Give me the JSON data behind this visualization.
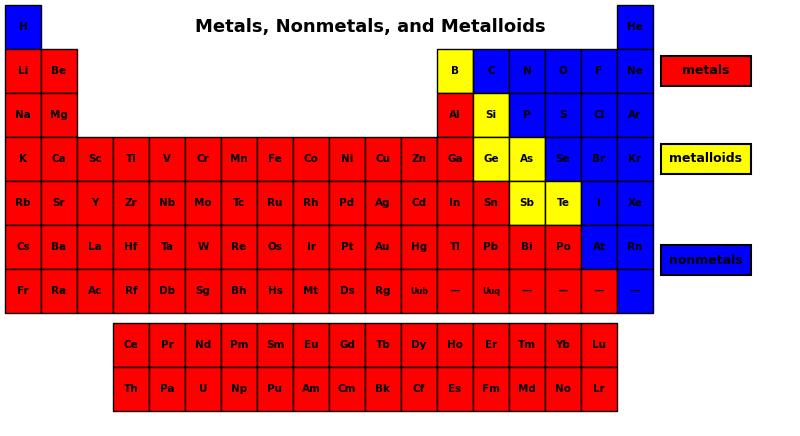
{
  "title": "Metals, Nonmetals, and Metalloids",
  "bg_color": "#ffffff",
  "metal_color": "#ff0000",
  "metalloid_color": "#ffff00",
  "nonmetal_color": "#0000ff",
  "text_color": "#000000",
  "legend": [
    {
      "label": "metals",
      "color": "#ff0000"
    },
    {
      "label": "metalloids",
      "color": "#ffff00"
    },
    {
      "label": "nonmetals",
      "color": "#0000ff"
    }
  ],
  "elements": [
    {
      "symbol": "H",
      "row": 0,
      "col": 0,
      "type": "nonmetal"
    },
    {
      "symbol": "He",
      "row": 0,
      "col": 17,
      "type": "nonmetal"
    },
    {
      "symbol": "Li",
      "row": 1,
      "col": 0,
      "type": "metal"
    },
    {
      "symbol": "Be",
      "row": 1,
      "col": 1,
      "type": "metal"
    },
    {
      "symbol": "B",
      "row": 1,
      "col": 12,
      "type": "metalloid"
    },
    {
      "symbol": "C",
      "row": 1,
      "col": 13,
      "type": "nonmetal"
    },
    {
      "symbol": "N",
      "row": 1,
      "col": 14,
      "type": "nonmetal"
    },
    {
      "symbol": "O",
      "row": 1,
      "col": 15,
      "type": "nonmetal"
    },
    {
      "symbol": "F",
      "row": 1,
      "col": 16,
      "type": "nonmetal"
    },
    {
      "symbol": "Ne",
      "row": 1,
      "col": 17,
      "type": "nonmetal"
    },
    {
      "symbol": "Na",
      "row": 2,
      "col": 0,
      "type": "metal"
    },
    {
      "symbol": "Mg",
      "row": 2,
      "col": 1,
      "type": "metal"
    },
    {
      "symbol": "Al",
      "row": 2,
      "col": 12,
      "type": "metal"
    },
    {
      "symbol": "Si",
      "row": 2,
      "col": 13,
      "type": "metalloid"
    },
    {
      "symbol": "P",
      "row": 2,
      "col": 14,
      "type": "nonmetal"
    },
    {
      "symbol": "S",
      "row": 2,
      "col": 15,
      "type": "nonmetal"
    },
    {
      "symbol": "Cl",
      "row": 2,
      "col": 16,
      "type": "nonmetal"
    },
    {
      "symbol": "Ar",
      "row": 2,
      "col": 17,
      "type": "nonmetal"
    },
    {
      "symbol": "K",
      "row": 3,
      "col": 0,
      "type": "metal"
    },
    {
      "symbol": "Ca",
      "row": 3,
      "col": 1,
      "type": "metal"
    },
    {
      "symbol": "Sc",
      "row": 3,
      "col": 2,
      "type": "metal"
    },
    {
      "symbol": "Ti",
      "row": 3,
      "col": 3,
      "type": "metal"
    },
    {
      "symbol": "V",
      "row": 3,
      "col": 4,
      "type": "metal"
    },
    {
      "symbol": "Cr",
      "row": 3,
      "col": 5,
      "type": "metal"
    },
    {
      "symbol": "Mn",
      "row": 3,
      "col": 6,
      "type": "metal"
    },
    {
      "symbol": "Fe",
      "row": 3,
      "col": 7,
      "type": "metal"
    },
    {
      "symbol": "Co",
      "row": 3,
      "col": 8,
      "type": "metal"
    },
    {
      "symbol": "Ni",
      "row": 3,
      "col": 9,
      "type": "metal"
    },
    {
      "symbol": "Cu",
      "row": 3,
      "col": 10,
      "type": "metal"
    },
    {
      "symbol": "Zn",
      "row": 3,
      "col": 11,
      "type": "metal"
    },
    {
      "symbol": "Ga",
      "row": 3,
      "col": 12,
      "type": "metal"
    },
    {
      "symbol": "Ge",
      "row": 3,
      "col": 13,
      "type": "metalloid"
    },
    {
      "symbol": "As",
      "row": 3,
      "col": 14,
      "type": "metalloid"
    },
    {
      "symbol": "Se",
      "row": 3,
      "col": 15,
      "type": "nonmetal"
    },
    {
      "symbol": "Br",
      "row": 3,
      "col": 16,
      "type": "nonmetal"
    },
    {
      "symbol": "Kr",
      "row": 3,
      "col": 17,
      "type": "nonmetal"
    },
    {
      "symbol": "Rb",
      "row": 4,
      "col": 0,
      "type": "metal"
    },
    {
      "symbol": "Sr",
      "row": 4,
      "col": 1,
      "type": "metal"
    },
    {
      "symbol": "Y",
      "row": 4,
      "col": 2,
      "type": "metal"
    },
    {
      "symbol": "Zr",
      "row": 4,
      "col": 3,
      "type": "metal"
    },
    {
      "symbol": "Nb",
      "row": 4,
      "col": 4,
      "type": "metal"
    },
    {
      "symbol": "Mo",
      "row": 4,
      "col": 5,
      "type": "metal"
    },
    {
      "symbol": "Tc",
      "row": 4,
      "col": 6,
      "type": "metal"
    },
    {
      "symbol": "Ru",
      "row": 4,
      "col": 7,
      "type": "metal"
    },
    {
      "symbol": "Rh",
      "row": 4,
      "col": 8,
      "type": "metal"
    },
    {
      "symbol": "Pd",
      "row": 4,
      "col": 9,
      "type": "metal"
    },
    {
      "symbol": "Ag",
      "row": 4,
      "col": 10,
      "type": "metal"
    },
    {
      "symbol": "Cd",
      "row": 4,
      "col": 11,
      "type": "metal"
    },
    {
      "symbol": "In",
      "row": 4,
      "col": 12,
      "type": "metal"
    },
    {
      "symbol": "Sn",
      "row": 4,
      "col": 13,
      "type": "metal"
    },
    {
      "symbol": "Sb",
      "row": 4,
      "col": 14,
      "type": "metalloid"
    },
    {
      "symbol": "Te",
      "row": 4,
      "col": 15,
      "type": "metalloid"
    },
    {
      "symbol": "I",
      "row": 4,
      "col": 16,
      "type": "nonmetal"
    },
    {
      "symbol": "Xe",
      "row": 4,
      "col": 17,
      "type": "nonmetal"
    },
    {
      "symbol": "Cs",
      "row": 5,
      "col": 0,
      "type": "metal"
    },
    {
      "symbol": "Ba",
      "row": 5,
      "col": 1,
      "type": "metal"
    },
    {
      "symbol": "La",
      "row": 5,
      "col": 2,
      "type": "metal"
    },
    {
      "symbol": "Hf",
      "row": 5,
      "col": 3,
      "type": "metal"
    },
    {
      "symbol": "Ta",
      "row": 5,
      "col": 4,
      "type": "metal"
    },
    {
      "symbol": "W",
      "row": 5,
      "col": 5,
      "type": "metal"
    },
    {
      "symbol": "Re",
      "row": 5,
      "col": 6,
      "type": "metal"
    },
    {
      "symbol": "Os",
      "row": 5,
      "col": 7,
      "type": "metal"
    },
    {
      "symbol": "Ir",
      "row": 5,
      "col": 8,
      "type": "metal"
    },
    {
      "symbol": "Pt",
      "row": 5,
      "col": 9,
      "type": "metal"
    },
    {
      "symbol": "Au",
      "row": 5,
      "col": 10,
      "type": "metal"
    },
    {
      "symbol": "Hg",
      "row": 5,
      "col": 11,
      "type": "metal"
    },
    {
      "symbol": "Tl",
      "row": 5,
      "col": 12,
      "type": "metal"
    },
    {
      "symbol": "Pb",
      "row": 5,
      "col": 13,
      "type": "metal"
    },
    {
      "symbol": "Bi",
      "row": 5,
      "col": 14,
      "type": "metal"
    },
    {
      "symbol": "Po",
      "row": 5,
      "col": 15,
      "type": "metal"
    },
    {
      "symbol": "At",
      "row": 5,
      "col": 16,
      "type": "nonmetal"
    },
    {
      "symbol": "Rn",
      "row": 5,
      "col": 17,
      "type": "nonmetal"
    },
    {
      "symbol": "Fr",
      "row": 6,
      "col": 0,
      "type": "metal"
    },
    {
      "symbol": "Ra",
      "row": 6,
      "col": 1,
      "type": "metal"
    },
    {
      "symbol": "Ac",
      "row": 6,
      "col": 2,
      "type": "metal"
    },
    {
      "symbol": "Rf",
      "row": 6,
      "col": 3,
      "type": "metal"
    },
    {
      "symbol": "Db",
      "row": 6,
      "col": 4,
      "type": "metal"
    },
    {
      "symbol": "Sg",
      "row": 6,
      "col": 5,
      "type": "metal"
    },
    {
      "symbol": "Bh",
      "row": 6,
      "col": 6,
      "type": "metal"
    },
    {
      "symbol": "Hs",
      "row": 6,
      "col": 7,
      "type": "metal"
    },
    {
      "symbol": "Mt",
      "row": 6,
      "col": 8,
      "type": "metal"
    },
    {
      "symbol": "Ds",
      "row": 6,
      "col": 9,
      "type": "metal"
    },
    {
      "symbol": "Rg",
      "row": 6,
      "col": 10,
      "type": "metal"
    },
    {
      "symbol": "Uub",
      "row": 6,
      "col": 11,
      "type": "metal"
    },
    {
      "symbol": "—",
      "row": 6,
      "col": 12,
      "type": "metal"
    },
    {
      "symbol": "Uuq",
      "row": 6,
      "col": 13,
      "type": "metal"
    },
    {
      "symbol": "—",
      "row": 6,
      "col": 14,
      "type": "metal"
    },
    {
      "symbol": "—",
      "row": 6,
      "col": 15,
      "type": "metal"
    },
    {
      "symbol": "—",
      "row": 6,
      "col": 16,
      "type": "metal"
    },
    {
      "symbol": "—",
      "row": 6,
      "col": 17,
      "type": "nonmetal"
    },
    {
      "symbol": "Ce",
      "row": 8,
      "col": 3,
      "type": "metal"
    },
    {
      "symbol": "Pr",
      "row": 8,
      "col": 4,
      "type": "metal"
    },
    {
      "symbol": "Nd",
      "row": 8,
      "col": 5,
      "type": "metal"
    },
    {
      "symbol": "Pm",
      "row": 8,
      "col": 6,
      "type": "metal"
    },
    {
      "symbol": "Sm",
      "row": 8,
      "col": 7,
      "type": "metal"
    },
    {
      "symbol": "Eu",
      "row": 8,
      "col": 8,
      "type": "metal"
    },
    {
      "symbol": "Gd",
      "row": 8,
      "col": 9,
      "type": "metal"
    },
    {
      "symbol": "Tb",
      "row": 8,
      "col": 10,
      "type": "metal"
    },
    {
      "symbol": "Dy",
      "row": 8,
      "col": 11,
      "type": "metal"
    },
    {
      "symbol": "Ho",
      "row": 8,
      "col": 12,
      "type": "metal"
    },
    {
      "symbol": "Er",
      "row": 8,
      "col": 13,
      "type": "metal"
    },
    {
      "symbol": "Tm",
      "row": 8,
      "col": 14,
      "type": "metal"
    },
    {
      "symbol": "Yb",
      "row": 8,
      "col": 15,
      "type": "metal"
    },
    {
      "symbol": "Lu",
      "row": 8,
      "col": 16,
      "type": "metal"
    },
    {
      "symbol": "Th",
      "row": 9,
      "col": 3,
      "type": "metal"
    },
    {
      "symbol": "Pa",
      "row": 9,
      "col": 4,
      "type": "metal"
    },
    {
      "symbol": "U",
      "row": 9,
      "col": 5,
      "type": "metal"
    },
    {
      "symbol": "Np",
      "row": 9,
      "col": 6,
      "type": "metal"
    },
    {
      "symbol": "Pu",
      "row": 9,
      "col": 7,
      "type": "metal"
    },
    {
      "symbol": "Am",
      "row": 9,
      "col": 8,
      "type": "metal"
    },
    {
      "symbol": "Cm",
      "row": 9,
      "col": 9,
      "type": "metal"
    },
    {
      "symbol": "Bk",
      "row": 9,
      "col": 10,
      "type": "metal"
    },
    {
      "symbol": "Cf",
      "row": 9,
      "col": 11,
      "type": "metal"
    },
    {
      "symbol": "Es",
      "row": 9,
      "col": 12,
      "type": "metal"
    },
    {
      "symbol": "Fm",
      "row": 9,
      "col": 13,
      "type": "metal"
    },
    {
      "symbol": "Md",
      "row": 9,
      "col": 14,
      "type": "metal"
    },
    {
      "symbol": "No",
      "row": 9,
      "col": 15,
      "type": "metal"
    },
    {
      "symbol": "Lr",
      "row": 9,
      "col": 16,
      "type": "metal"
    }
  ],
  "title_fontsize": 13,
  "cell_fontsize": 7.5,
  "legend_fontsize": 9
}
